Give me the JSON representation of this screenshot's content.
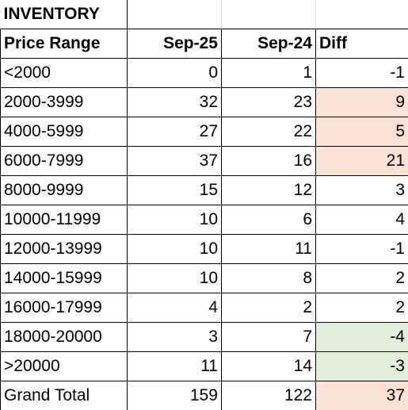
{
  "title": "INVENTORY",
  "headers": [
    "Price Range",
    "Sep-25",
    "Sep-24",
    "Diff"
  ],
  "rows": [
    {
      "range": "<2000",
      "sep25": "0",
      "sep24": "1",
      "diff": "-1",
      "highlight": "none"
    },
    {
      "range": "2000-3999",
      "sep25": "32",
      "sep24": "23",
      "diff": "9",
      "highlight": "positive"
    },
    {
      "range": "4000-5999",
      "sep25": "27",
      "sep24": "22",
      "diff": "5",
      "highlight": "positive"
    },
    {
      "range": "6000-7999",
      "sep25": "37",
      "sep24": "16",
      "diff": "21",
      "highlight": "positive"
    },
    {
      "range": "8000-9999",
      "sep25": "15",
      "sep24": "12",
      "diff": "3",
      "highlight": "none"
    },
    {
      "range": "10000-11999",
      "sep25": "10",
      "sep24": "6",
      "diff": "4",
      "highlight": "none"
    },
    {
      "range": "12000-13999",
      "sep25": "10",
      "sep24": "11",
      "diff": "-1",
      "highlight": "none"
    },
    {
      "range": "14000-15999",
      "sep25": "10",
      "sep24": "8",
      "diff": "2",
      "highlight": "none"
    },
    {
      "range": "16000-17999",
      "sep25": "4",
      "sep24": "2",
      "diff": "2",
      "highlight": "none"
    },
    {
      "range": "18000-20000",
      "sep25": "3",
      "sep24": "7",
      "diff": "-4",
      "highlight": "negative"
    },
    {
      "range": ">20000",
      "sep25": "11",
      "sep24": "14",
      "diff": "-3",
      "highlight": "negative"
    }
  ],
  "total": {
    "label": "Grand Total",
    "sep25": "159",
    "sep24": "122",
    "diff": "37",
    "highlight": "positive"
  },
  "colors": {
    "positive_fill": "#fbe2d5",
    "negative_fill": "#e2efda",
    "grid_line": "#000000"
  }
}
